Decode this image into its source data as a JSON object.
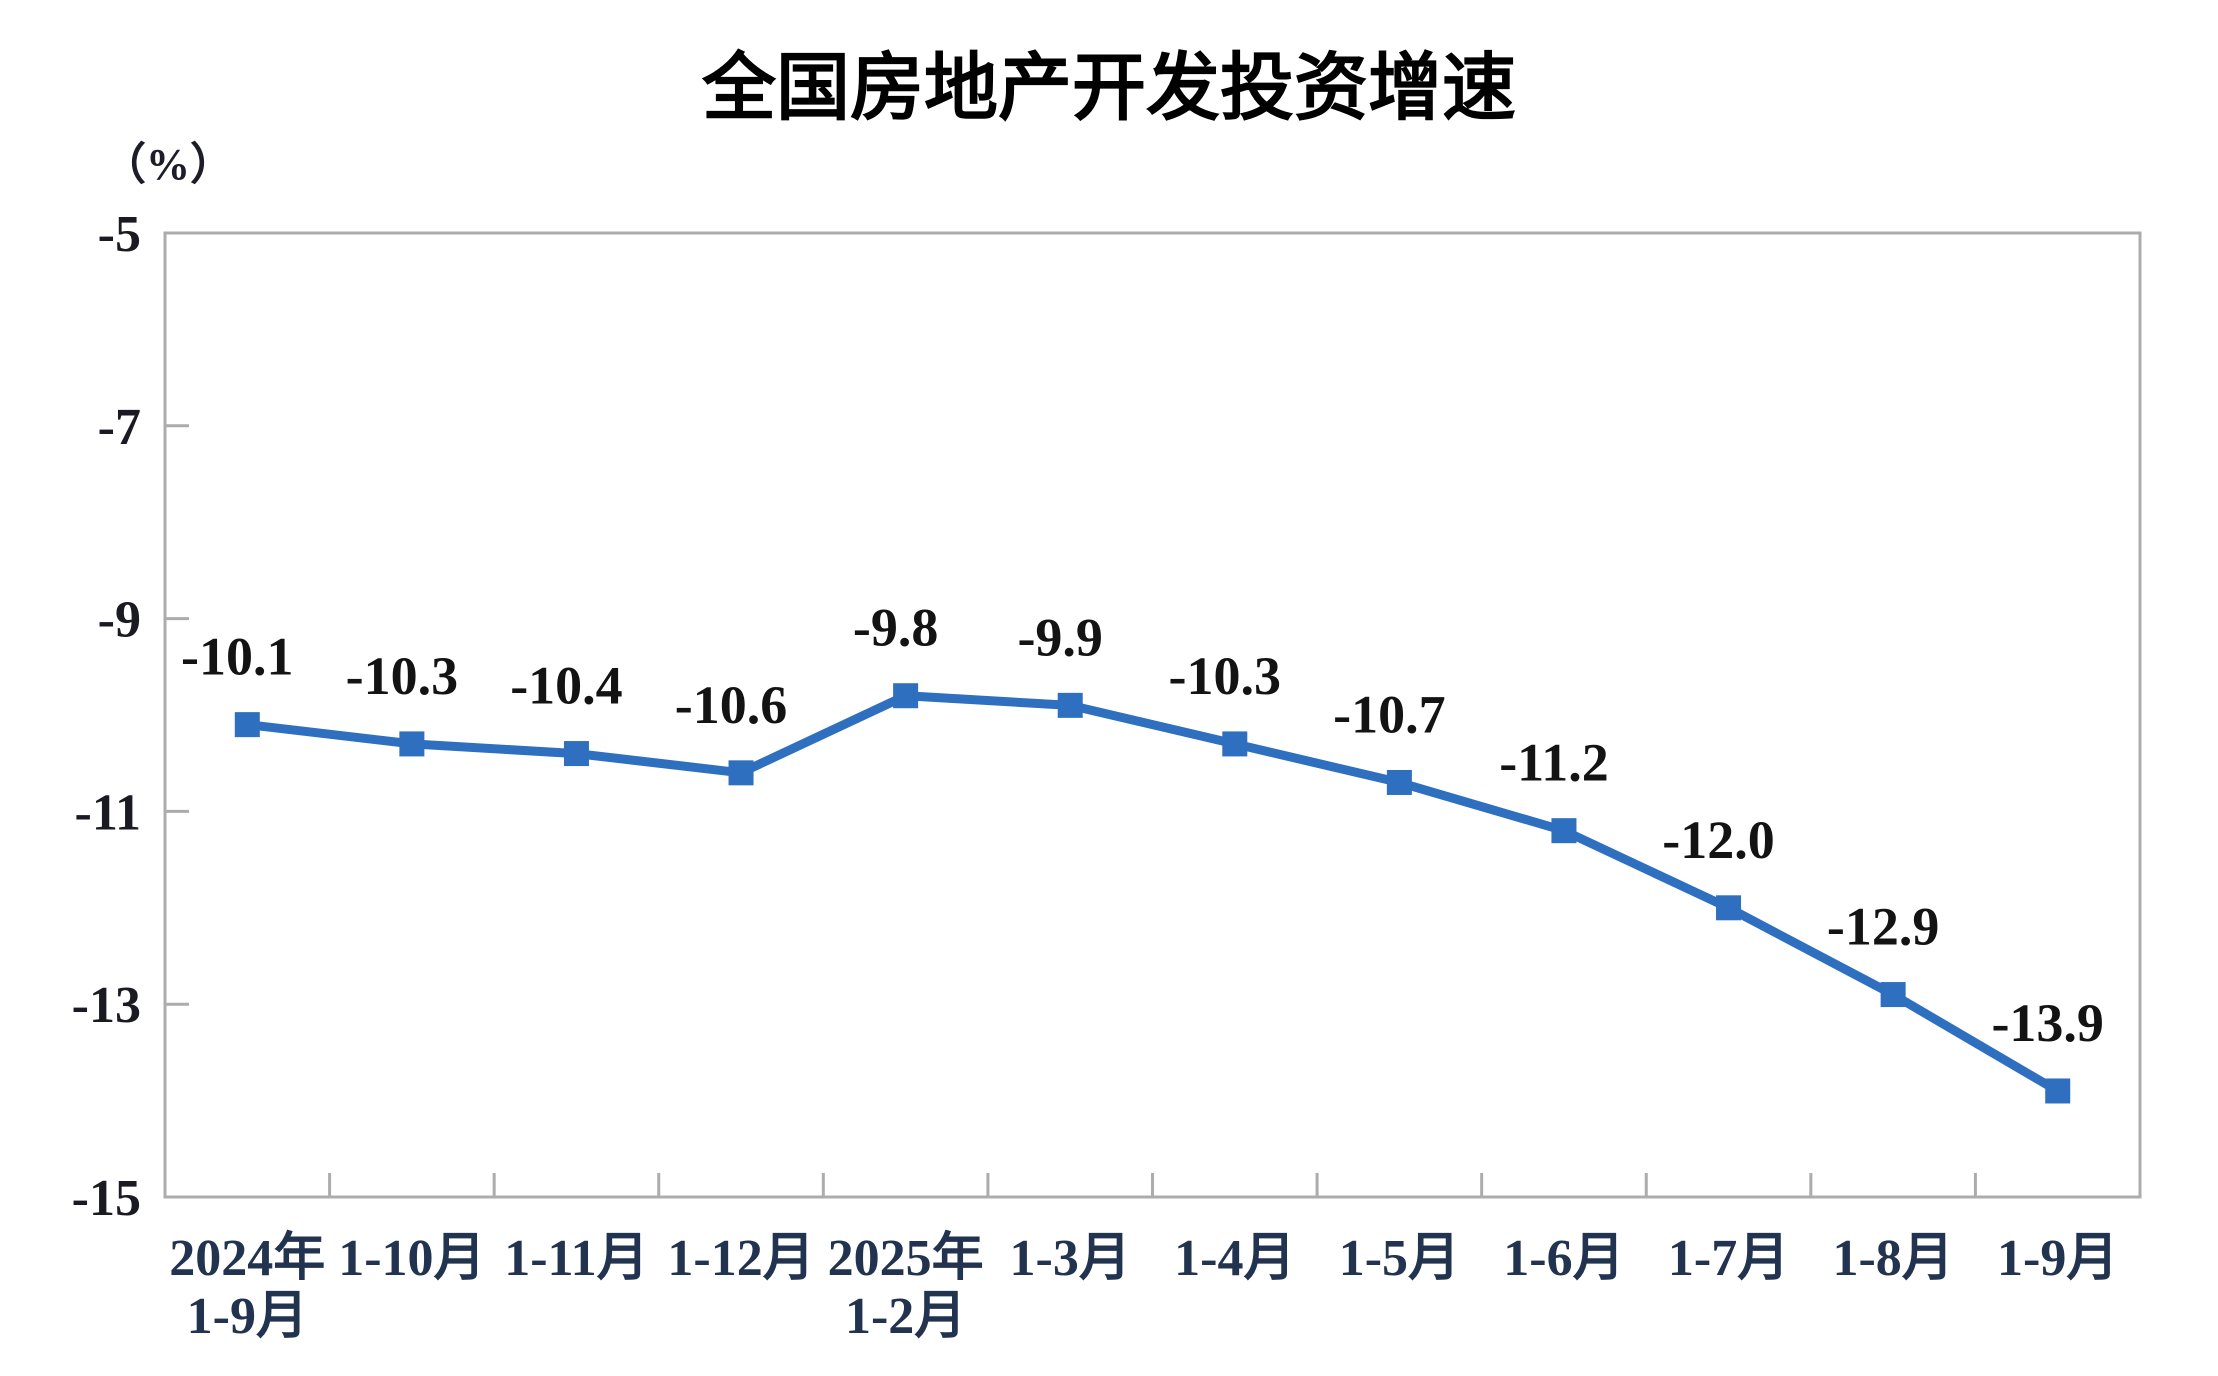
{
  "chart_data": {
    "type": "line",
    "title": "全国房地产开发投资增速",
    "unit_label": "（%）",
    "xlabel": "",
    "ylabel": "（%）",
    "categories": [
      "2024年\n1-9月",
      "1-10月",
      "1-11月",
      "1-12月",
      "2025年\n1-2月",
      "1-3月",
      "1-4月",
      "1-5月",
      "1-6月",
      "1-7月",
      "1-8月",
      "1-9月"
    ],
    "series": [
      {
        "name": "全国房地产开发投资增速",
        "values": [
          -10.1,
          -10.3,
          -10.4,
          -10.6,
          -9.8,
          -9.9,
          -10.3,
          -10.7,
          -11.2,
          -12.0,
          -12.9,
          -13.9
        ],
        "point_labels": [
          "-10.1",
          "-10.3",
          "-10.4",
          "-10.6",
          "-9.8",
          "-9.9",
          "-10.3",
          "-10.7",
          "-11.2",
          "-12.0",
          "-12.9",
          "-13.9"
        ]
      }
    ],
    "ylim": [
      -15,
      -5
    ],
    "y_ticks": [
      -5,
      -7,
      -9,
      -11,
      -13,
      -15
    ],
    "y_tick_labels": [
      "-5",
      "-7",
      "-9",
      "-11",
      "-13",
      "-15"
    ],
    "grid": false,
    "legend": "none",
    "marker": "square",
    "colors": {
      "line": "#2E6FBF",
      "marker": "#2E6FBF",
      "plot_border": "#ACACAC",
      "title": "#000000",
      "data_label": "#131313",
      "y_tick_label": "#1a1a22",
      "x_tick_label": "#22334f"
    }
  }
}
